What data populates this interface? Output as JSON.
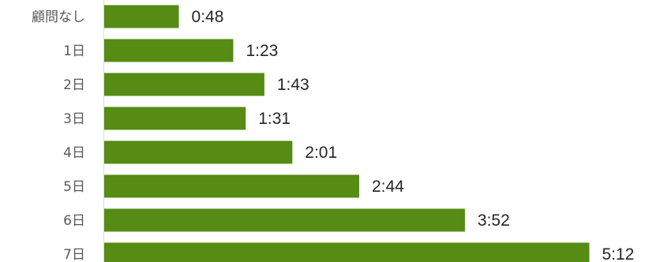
{
  "chart_data": {
    "type": "bar",
    "orientation": "horizontal",
    "categories": [
      "顧問なし",
      "1日",
      "2日",
      "3日",
      "4日",
      "5日",
      "6日",
      "7日"
    ],
    "values": [
      48,
      83,
      103,
      91,
      121,
      164,
      232,
      312
    ],
    "value_labels": [
      "0:48",
      "1:23",
      "1:43",
      "1:31",
      "2:01",
      "2:44",
      "3:52",
      "5:12"
    ],
    "value_unit": "minutes",
    "bar_color": "#568b14",
    "axis_color": "#d9d9d9",
    "title": "",
    "xlabel": "",
    "ylabel": "",
    "grid": false,
    "legend": "none"
  }
}
